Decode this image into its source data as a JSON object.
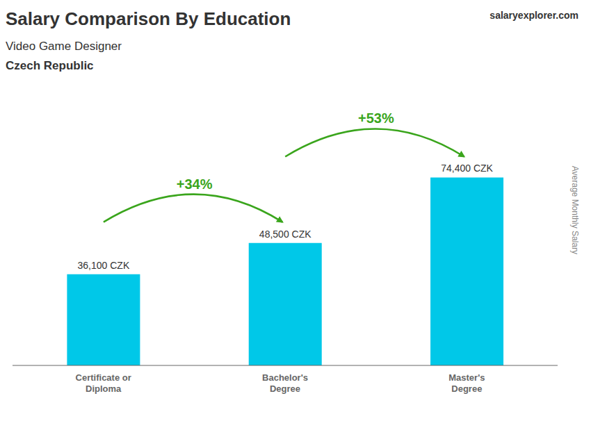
{
  "chart_data": {
    "type": "bar",
    "title": "Salary Comparison By Education",
    "subtitle": "Video Game Designer",
    "annotations": [
      "Czech Republic",
      "+34%",
      "+53%",
      "salaryexplorer.com"
    ],
    "ylabel": "Average Monthly Salary",
    "categories": [
      "Certificate or\nDiploma",
      "Bachelor's\nDegree",
      "Master's\nDegree"
    ],
    "values": [
      36100,
      48500,
      74400
    ],
    "value_labels": [
      "36,100 CZK",
      "48,500 CZK",
      "74,400 CZK"
    ],
    "data_labels": true,
    "color": "#00c8e8",
    "ylim": [
      0,
      88000
    ],
    "tick_labels": "x",
    "grid": false
  }
}
